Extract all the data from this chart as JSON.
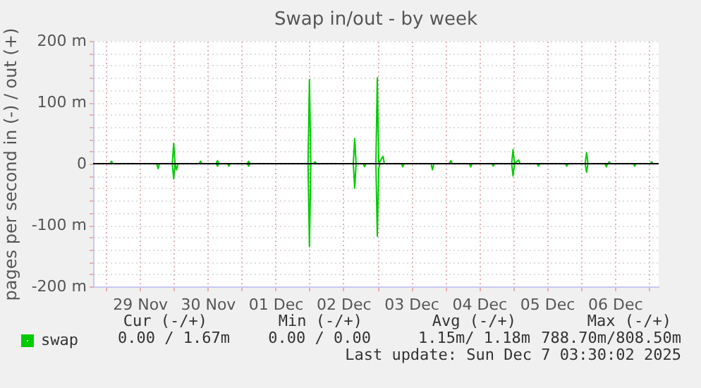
{
  "chart_data": {
    "type": "line",
    "title": "Swap in/out - by week",
    "ylabel": "pages per second in (-) / out (+)",
    "xlim": [
      "2025-11-28T19:30",
      "2025-12-07T03:30"
    ],
    "xticks": [
      {
        "value": "2025-11-29T00:00",
        "label": null
      },
      {
        "value": "2025-11-29T12:00",
        "label": "29 Nov"
      },
      {
        "value": "2025-11-30T00:00",
        "label": null
      },
      {
        "value": "2025-11-30T12:00",
        "label": "30 Nov"
      },
      {
        "value": "2025-12-01T00:00",
        "label": null
      },
      {
        "value": "2025-12-01T12:00",
        "label": "01 Dec"
      },
      {
        "value": "2025-12-02T00:00",
        "label": null
      },
      {
        "value": "2025-12-02T12:00",
        "label": "02 Dec"
      },
      {
        "value": "2025-12-03T00:00",
        "label": null
      },
      {
        "value": "2025-12-03T12:00",
        "label": "03 Dec"
      },
      {
        "value": "2025-12-04T00:00",
        "label": null
      },
      {
        "value": "2025-12-04T12:00",
        "label": "04 Dec"
      },
      {
        "value": "2025-12-05T00:00",
        "label": null
      },
      {
        "value": "2025-12-05T12:00",
        "label": "05 Dec"
      },
      {
        "value": "2025-12-06T00:00",
        "label": null
      },
      {
        "value": "2025-12-06T12:00",
        "label": "06 Dec"
      },
      {
        "value": "2025-12-07T00:00",
        "label": null
      }
    ],
    "ylim": [
      -200,
      200
    ],
    "yticks": [
      {
        "value": -200,
        "label": "-200 m"
      },
      {
        "value": -180,
        "label": null
      },
      {
        "value": -160,
        "label": null
      },
      {
        "value": -140,
        "label": null
      },
      {
        "value": -120,
        "label": null
      },
      {
        "value": -100,
        "label": "-100 m"
      },
      {
        "value": -80,
        "label": null
      },
      {
        "value": -60,
        "label": null
      },
      {
        "value": -40,
        "label": null
      },
      {
        "value": -20,
        "label": null
      },
      0,
      {
        "value": 20,
        "label": null
      },
      {
        "value": 40,
        "label": null
      },
      {
        "value": 60,
        "label": null
      },
      {
        "value": 80,
        "label": null
      },
      {
        "value": 100,
        "label": "100 m"
      },
      {
        "value": 120,
        "label": null
      },
      {
        "value": 140,
        "label": null
      },
      {
        "value": 160,
        "label": null
      },
      {
        "value": 180,
        "label": null
      },
      {
        "value": 200,
        "label": "200 m"
      }
    ],
    "grid": true,
    "legend": "bottom left",
    "line_style": "solid",
    "ref_lines": [
      {
        "axis": "y",
        "value": 0,
        "color": "#000000"
      }
    ],
    "series": [
      {
        "name": "swap",
        "color": "#00cc00",
        "x": [
          "2025-11-28T19:30",
          "2025-11-29T01:30",
          "2025-11-29T02:00",
          "2025-11-29T02:30",
          "2025-11-29T23:30",
          "2025-11-30T00:00",
          "2025-11-30T00:30",
          "2025-11-30T09:00",
          "2025-11-30T09:30",
          "2025-11-30T10:00",
          "2025-11-30T15:00",
          "2025-11-30T15:30",
          "2025-11-30T16:00",
          "2025-12-01T02:00",
          "2025-12-01T02:30",
          "2025-12-01T03:00",
          "2025-12-01T23:30",
          "2025-12-02T00:00",
          "2025-12-02T00:30",
          "2025-12-02T01:30",
          "2025-12-02T02:00",
          "2025-12-02T02:30",
          "2025-12-02T15:30",
          "2025-12-02T16:00",
          "2025-12-02T16:30",
          "2025-12-02T23:30",
          "2025-12-03T00:00",
          "2025-12-03T00:30",
          "2025-12-03T02:00",
          "2025-12-03T02:30",
          "2025-12-04T01:30",
          "2025-12-04T02:00",
          "2025-12-04T02:30",
          "2025-12-04T23:30",
          "2025-12-05T00:00",
          "2025-12-05T00:30",
          "2025-12-05T02:00",
          "2025-12-05T02:30",
          "2025-12-06T01:30",
          "2025-12-06T02:00",
          "2025-12-06T02:30",
          "2025-12-06T09:30",
          "2025-12-06T10:00",
          "2025-12-06T10:30",
          "2025-12-07T00:30",
          "2025-12-07T01:00",
          "2025-12-07T01:30",
          "2025-12-07T03:30"
        ],
        "values": [
          0,
          0,
          4,
          0,
          0,
          33,
          0,
          0,
          4,
          0,
          0,
          5,
          0,
          0,
          4,
          0,
          0,
          137,
          0,
          0,
          3,
          0,
          0,
          41,
          0,
          0,
          140,
          0,
          12,
          0,
          0,
          5,
          0,
          0,
          23,
          0,
          6,
          0,
          0,
          18,
          0,
          0,
          3,
          0,
          0,
          3,
          0,
          0
        ]
      },
      {
        "color": "#00cc00",
        "x": [
          "2025-11-28T19:30",
          "2025-11-29T18:00",
          "2025-11-29T18:30",
          "2025-11-29T19:00",
          "2025-11-29T23:30",
          "2025-11-30T00:00",
          "2025-11-30T00:30",
          "2025-11-30T01:00",
          "2025-11-30T01:30",
          "2025-11-30T15:00",
          "2025-11-30T15:30",
          "2025-11-30T16:00",
          "2025-11-30T19:00",
          "2025-11-30T19:30",
          "2025-11-30T20:00",
          "2025-12-01T02:00",
          "2025-12-01T02:30",
          "2025-12-01T03:00",
          "2025-12-01T23:30",
          "2025-12-02T00:00",
          "2025-12-02T00:30",
          "2025-12-02T15:30",
          "2025-12-02T16:00",
          "2025-12-02T16:30",
          "2025-12-02T19:00",
          "2025-12-02T19:30",
          "2025-12-02T20:00",
          "2025-12-02T23:30",
          "2025-12-03T00:00",
          "2025-12-03T00:30",
          "2025-12-03T01:00",
          "2025-12-03T08:30",
          "2025-12-03T09:00",
          "2025-12-03T09:30",
          "2025-12-03T19:00",
          "2025-12-03T19:30",
          "2025-12-03T20:00",
          "2025-12-04T08:30",
          "2025-12-04T09:00",
          "2025-12-04T09:30",
          "2025-12-04T16:30",
          "2025-12-04T17:00",
          "2025-12-04T17:30",
          "2025-12-04T23:30",
          "2025-12-05T00:00",
          "2025-12-05T00:30",
          "2025-12-05T08:30",
          "2025-12-05T09:00",
          "2025-12-05T09:30",
          "2025-12-05T18:30",
          "2025-12-05T19:00",
          "2025-12-05T19:30",
          "2025-12-06T01:30",
          "2025-12-06T02:00",
          "2025-12-06T02:30",
          "2025-12-06T08:30",
          "2025-12-06T09:00",
          "2025-12-06T09:30",
          "2025-12-06T18:30",
          "2025-12-06T19:00",
          "2025-12-06T19:30",
          "2025-12-07T03:30"
        ],
        "values": [
          0,
          0,
          -8,
          0,
          0,
          -25,
          0,
          -10,
          0,
          0,
          -4,
          0,
          0,
          -4,
          0,
          0,
          -4,
          0,
          0,
          -135,
          0,
          0,
          -40,
          0,
          0,
          -5,
          0,
          0,
          -118,
          -8,
          0,
          0,
          -5,
          0,
          0,
          -10,
          0,
          0,
          -5,
          0,
          0,
          -4,
          0,
          0,
          -20,
          0,
          0,
          -4,
          0,
          0,
          -4,
          0,
          0,
          -14,
          0,
          0,
          -5,
          0,
          0,
          -4,
          0,
          0
        ]
      }
    ],
    "annotations": [
      "Cur (-/+)",
      "Min (-/+)",
      "Avg (-/+)",
      "Max (-/+)",
      "0.00 /   1.67m",
      "0.00 /   0.00",
      "1.15m/  1.18m",
      "788.70m/808.50m",
      "Last update: Sun Dec  7 03:30:02 2025"
    ]
  }
}
